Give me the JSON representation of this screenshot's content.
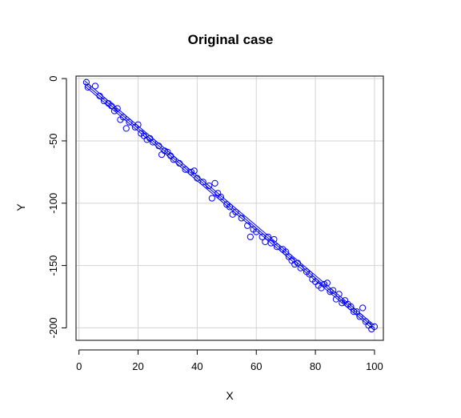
{
  "chart_data": {
    "type": "scatter",
    "title": "Original case",
    "xlabel": "X",
    "ylabel": "Y",
    "xlim": [
      0,
      100
    ],
    "ylim": [
      -210,
      2
    ],
    "xticks": [
      0,
      20,
      40,
      60,
      80,
      100
    ],
    "yticks": [
      0,
      -50,
      -100,
      -150,
      -200
    ],
    "xtick_labels": [
      "0",
      "20",
      "40",
      "60",
      "80",
      "100"
    ],
    "ytick_labels": [
      "0",
      "-50",
      "-100",
      "-150",
      "-200"
    ],
    "grid": true,
    "colors": {
      "points": "#0000ff",
      "line": "#0000ff",
      "grid": "#d3d3d3",
      "frame": "#000000"
    },
    "series": [
      {
        "type": "scatter",
        "x": [
          2.5,
          3.0,
          5.5,
          7.0,
          8.5,
          10.0,
          11.0,
          12.0,
          13.0,
          14.0,
          15.0,
          16.0,
          17.0,
          19.0,
          20.0,
          21.0,
          22.0,
          23.0,
          24.0,
          25.0,
          27.0,
          28.0,
          29.0,
          30.0,
          31.0,
          32.0,
          34.0,
          36.0,
          38.0,
          39.0,
          40.0,
          42.0,
          44.0,
          45.0,
          46.0,
          47.0,
          48.0,
          50.0,
          51.0,
          52.0,
          53.0,
          55.0,
          57.0,
          58.0,
          59.0,
          60.0,
          62.0,
          63.0,
          64.0,
          65.0,
          66.0,
          67.0,
          69.0,
          70.0,
          71.0,
          72.0,
          73.0,
          74.0,
          75.0,
          77.0,
          78.0,
          79.0,
          80.0,
          81.0,
          82.0,
          83.0,
          84.0,
          85.0,
          86.0,
          87.0,
          88.0,
          89.0,
          90.0,
          91.0,
          92.0,
          93.0,
          94.0,
          95.0,
          96.0,
          97.0,
          98.0,
          99.0,
          100.0
        ],
        "y": [
          -3,
          -7,
          -6,
          -14,
          -18,
          -20,
          -22,
          -26,
          -24,
          -33,
          -31,
          -40,
          -35,
          -39,
          -37,
          -44,
          -46,
          -49,
          -48,
          -51,
          -54,
          -61,
          -58,
          -59,
          -62,
          -65,
          -68,
          -73,
          -75,
          -74,
          -80,
          -83,
          -86,
          -96,
          -84,
          -92,
          -95,
          -101,
          -103,
          -109,
          -107,
          -112,
          -118,
          -127,
          -121,
          -123,
          -127,
          -131,
          -127,
          -132,
          -129,
          -135,
          -137,
          -139,
          -143,
          -146,
          -149,
          -148,
          -152,
          -155,
          -157,
          -161,
          -163,
          -166,
          -168,
          -165,
          -164,
          -171,
          -170,
          -177,
          -173,
          -180,
          -178,
          -181,
          -183,
          -187,
          -187,
          -191,
          -184,
          -195,
          -198,
          -201,
          -199
        ]
      },
      {
        "type": "line",
        "x": [
          2,
          100
        ],
        "y": [
          -4,
          -200
        ]
      },
      {
        "type": "line",
        "x": [
          2,
          100
        ],
        "y": [
          -2,
          -198
        ]
      },
      {
        "type": "line",
        "x": [
          2,
          100
        ],
        "y": [
          -6,
          -202
        ]
      }
    ]
  }
}
